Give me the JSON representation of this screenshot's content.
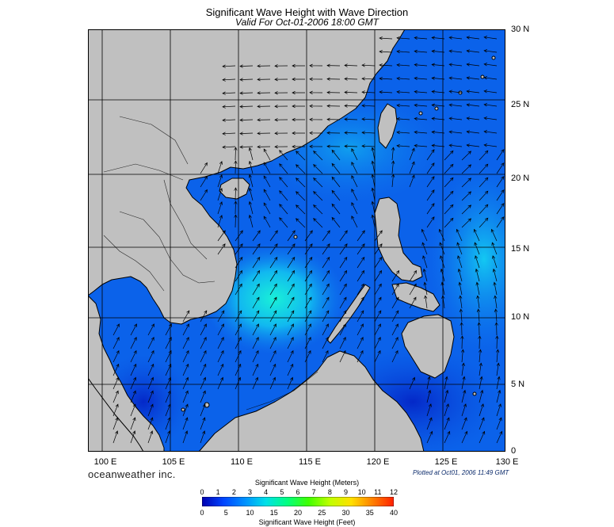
{
  "header": {
    "title": "Significant Wave Height with Wave Direction",
    "subtitle": "Valid For Oct-01-2006 18:00 GMT"
  },
  "map": {
    "lat_labels": [
      "30 N",
      "25 N",
      "20 N",
      "15 N",
      "10 N",
      "5 N",
      "0"
    ],
    "lon_labels": [
      "100 E",
      "105 E",
      "110 E",
      "115 E",
      "120 E",
      "125 E",
      "130 E"
    ],
    "lon_range": [
      99,
      130
    ],
    "lat_range": [
      0,
      30
    ],
    "grid": true,
    "colors": {
      "land": "#c0c0c0",
      "coast": "#000000",
      "grid": "#000000"
    }
  },
  "footer": {
    "logo": "oceanweather inc.",
    "plotted": "Plotted at Oct01, 2006 11:49 GMT"
  },
  "colorbar": {
    "title_meters": "Significant Wave Height (Meters)",
    "title_feet": "Significant Wave Height (Feet)",
    "meters_ticks": [
      "0",
      "1",
      "2",
      "3",
      "4",
      "5",
      "6",
      "7",
      "8",
      "9",
      "10",
      "11",
      "12"
    ],
    "feet_ticks": [
      "0",
      "5",
      "10",
      "15",
      "20",
      "25",
      "30",
      "35",
      "40"
    ],
    "stops": [
      "#0000b0",
      "#0044ff",
      "#0090ff",
      "#00e0e8",
      "#00ff80",
      "#40ff00",
      "#c0ff00",
      "#ffe000",
      "#ff8000",
      "#ff2000"
    ]
  }
}
